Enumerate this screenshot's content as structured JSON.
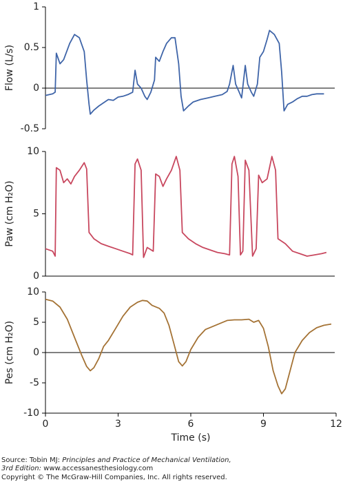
{
  "chart_data": [
    {
      "type": "line",
      "ylabel": "Flow (L/s)",
      "color": "#3e64a8",
      "xlim": [
        0,
        12
      ],
      "ylim": [
        -0.5,
        1
      ],
      "yticks": [
        1,
        0.5,
        0,
        -0.5
      ],
      "x": [
        0,
        0.3,
        0.4,
        0.45,
        0.6,
        0.75,
        1.0,
        1.2,
        1.4,
        1.6,
        1.7,
        1.8,
        1.85,
        2.0,
        2.2,
        2.4,
        2.6,
        2.8,
        3.0,
        3.2,
        3.4,
        3.6,
        3.7,
        3.8,
        3.95,
        4.1,
        4.2,
        4.35,
        4.5,
        4.55,
        4.7,
        4.85,
        5.0,
        5.2,
        5.35,
        5.5,
        5.6,
        5.7,
        5.9,
        6.1,
        6.4,
        6.7,
        7.0,
        7.3,
        7.5,
        7.6,
        7.75,
        7.85,
        8.0,
        8.1,
        8.25,
        8.35,
        8.5,
        8.6,
        8.75,
        8.85,
        9.0,
        9.15,
        9.25,
        9.45,
        9.65,
        9.75,
        9.85,
        10.0,
        10.2,
        10.4,
        10.6,
        10.8,
        11.0,
        11.2,
        11.5
      ],
      "values": [
        -0.09,
        -0.07,
        -0.05,
        0.43,
        0.3,
        0.35,
        0.55,
        0.66,
        0.62,
        0.45,
        0.1,
        -0.2,
        -0.32,
        -0.27,
        -0.22,
        -0.18,
        -0.14,
        -0.15,
        -0.11,
        -0.1,
        -0.08,
        -0.05,
        0.22,
        0.05,
        0,
        -0.1,
        -0.14,
        -0.05,
        0.1,
        0.38,
        0.33,
        0.45,
        0.55,
        0.62,
        0.62,
        0.3,
        -0.1,
        -0.28,
        -0.22,
        -0.17,
        -0.14,
        -0.12,
        -0.1,
        -0.08,
        -0.04,
        0.05,
        0.28,
        0.05,
        -0.05,
        -0.12,
        0.28,
        0.05,
        -0.05,
        -0.1,
        0.05,
        0.38,
        0.45,
        0.6,
        0.71,
        0.66,
        0.55,
        0.2,
        -0.28,
        -0.2,
        -0.17,
        -0.13,
        -0.1,
        -0.1,
        -0.08,
        -0.07,
        -0.07
      ]
    },
    {
      "type": "line",
      "ylabel": "Paw (cm H₂O)",
      "color": "#c8475e",
      "xlim": [
        0,
        12
      ],
      "ylim": [
        0,
        10
      ],
      "yticks": [
        10,
        5,
        0
      ],
      "x": [
        0,
        0.3,
        0.4,
        0.45,
        0.6,
        0.75,
        0.9,
        1.05,
        1.2,
        1.4,
        1.6,
        1.7,
        1.8,
        2.0,
        2.3,
        2.6,
        2.9,
        3.2,
        3.5,
        3.6,
        3.7,
        3.8,
        3.95,
        4.05,
        4.2,
        4.45,
        4.55,
        4.7,
        4.85,
        5.0,
        5.2,
        5.4,
        5.55,
        5.65,
        5.9,
        6.2,
        6.5,
        6.8,
        7.1,
        7.4,
        7.6,
        7.7,
        7.8,
        7.95,
        8.05,
        8.15,
        8.25,
        8.4,
        8.55,
        8.7,
        8.8,
        8.95,
        9.15,
        9.35,
        9.5,
        9.6,
        9.9,
        10.2,
        10.5,
        10.8,
        11.1,
        11.4,
        11.6
      ],
      "values": [
        2.2,
        2.0,
        1.6,
        8.7,
        8.5,
        7.5,
        7.8,
        7.4,
        8.0,
        8.5,
        9.1,
        8.6,
        3.5,
        3.0,
        2.6,
        2.4,
        2.2,
        2.0,
        1.8,
        1.7,
        9.0,
        9.4,
        8.5,
        1.5,
        2.3,
        2.0,
        8.2,
        8.0,
        7.2,
        7.8,
        8.5,
        9.6,
        8.5,
        3.5,
        3.0,
        2.6,
        2.3,
        2.1,
        1.9,
        1.8,
        1.7,
        9.0,
        9.6,
        8.0,
        1.7,
        2.0,
        9.3,
        8.5,
        1.6,
        2.2,
        8.1,
        7.5,
        7.8,
        9.6,
        8.5,
        3.0,
        2.6,
        2.0,
        1.8,
        1.6,
        1.7,
        1.8,
        1.9
      ]
    },
    {
      "type": "line",
      "ylabel": "Pes (cm H₂O)",
      "xlabel": "Time (s)",
      "color": "#a47234",
      "xlim": [
        0,
        12
      ],
      "xticks": [
        0,
        3,
        6,
        9,
        12
      ],
      "ylim": [
        -10,
        10
      ],
      "yticks": [
        10,
        5,
        0,
        -5,
        -10
      ],
      "x": [
        0,
        0.3,
        0.6,
        0.9,
        1.2,
        1.5,
        1.7,
        1.85,
        2.0,
        2.2,
        2.4,
        2.6,
        2.9,
        3.2,
        3.5,
        3.8,
        4.0,
        4.2,
        4.4,
        4.7,
        4.9,
        5.1,
        5.3,
        5.5,
        5.65,
        5.8,
        6.0,
        6.3,
        6.6,
        6.9,
        7.2,
        7.5,
        7.8,
        8.1,
        8.4,
        8.6,
        8.8,
        9.0,
        9.2,
        9.4,
        9.6,
        9.75,
        9.9,
        10.1,
        10.3,
        10.6,
        10.9,
        11.2,
        11.5,
        11.8
      ],
      "values": [
        8.8,
        8.5,
        7.5,
        5.5,
        2.5,
        -0.5,
        -2.3,
        -3.0,
        -2.5,
        -1.0,
        1.0,
        2.0,
        4.0,
        6.0,
        7.5,
        8.3,
        8.6,
        8.5,
        7.8,
        7.3,
        6.5,
        4.5,
        1.5,
        -1.5,
        -2.2,
        -1.5,
        0.5,
        2.5,
        3.8,
        4.3,
        4.8,
        5.3,
        5.4,
        5.4,
        5.5,
        5.0,
        5.3,
        4.0,
        1.0,
        -3.0,
        -5.5,
        -6.8,
        -6.0,
        -3.0,
        0,
        2.0,
        3.3,
        4.1,
        4.5,
        4.7
      ]
    }
  ],
  "footer": {
    "source_prefix": "Source: Tobin MJ: ",
    "source_title": "Principles and Practice of Mechanical Ventilation,",
    "source_edition": "3rd Edition:",
    "source_url": " www.accessanesthesiology.com",
    "copyright": "Copyright © The McGraw-Hill Companies, Inc. All rights reserved."
  }
}
